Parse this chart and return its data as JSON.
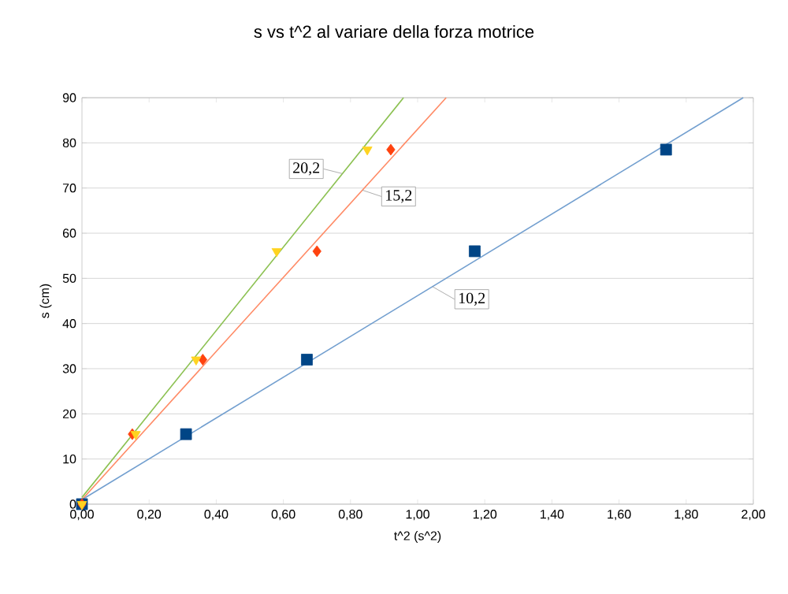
{
  "chart_data": {
    "type": "scatter",
    "title": "s vs t^2 al variare della forza motrice",
    "xlabel": "t^2 (s^2)",
    "ylabel": "s (cm)",
    "xlim": [
      0,
      2
    ],
    "ylim": [
      0,
      90
    ],
    "xticks": [
      {
        "value": 0,
        "label": "0,00"
      },
      {
        "value": 0.2,
        "label": "0,20"
      },
      {
        "value": 0.4,
        "label": "0,40"
      },
      {
        "value": 0.6,
        "label": "0,60"
      },
      {
        "value": 0.8,
        "label": "0,80"
      },
      {
        "value": 1,
        "label": "1,00"
      },
      {
        "value": 1.2,
        "label": "1,20"
      },
      {
        "value": 1.4,
        "label": "1,40"
      },
      {
        "value": 1.6,
        "label": "1,60"
      },
      {
        "value": 1.8,
        "label": "1,80"
      },
      {
        "value": 2,
        "label": "2,00"
      }
    ],
    "yticks": [
      0,
      10,
      20,
      30,
      40,
      50,
      60,
      70,
      80,
      90
    ],
    "grid": "y",
    "series": [
      {
        "color": "#004586",
        "marker": "square",
        "x": [
          0,
          0.31,
          0.67,
          1.17,
          1.74
        ],
        "values": [
          0,
          15.5,
          32,
          56,
          78.5
        ]
      },
      {
        "color": "#ff420e",
        "marker": "diamond",
        "x": [
          0,
          0.15,
          0.36,
          0.7,
          0.92
        ],
        "values": [
          0,
          15.5,
          32,
          56,
          78.5
        ]
      },
      {
        "color": "#ffd320",
        "marker": "triangle",
        "x": [
          0,
          0.16,
          0.34,
          0.58,
          0.85
        ],
        "values": [
          0,
          15.5,
          32,
          56,
          78.5
        ]
      },
      {
        "type": "line",
        "name": "10,2",
        "color": "#729fcf",
        "marker": "none",
        "x": [
          0,
          1.97
        ],
        "values": [
          1,
          90
        ]
      },
      {
        "type": "line",
        "name": "15,2",
        "color": "#ff8a65",
        "marker": "none",
        "x": [
          0,
          1.085
        ],
        "values": [
          1,
          90
        ]
      },
      {
        "type": "line",
        "name": "20,2",
        "color": "#8cc152",
        "marker": "none",
        "x": [
          0,
          0.958
        ],
        "values": [
          1.5,
          90
        ]
      }
    ]
  }
}
